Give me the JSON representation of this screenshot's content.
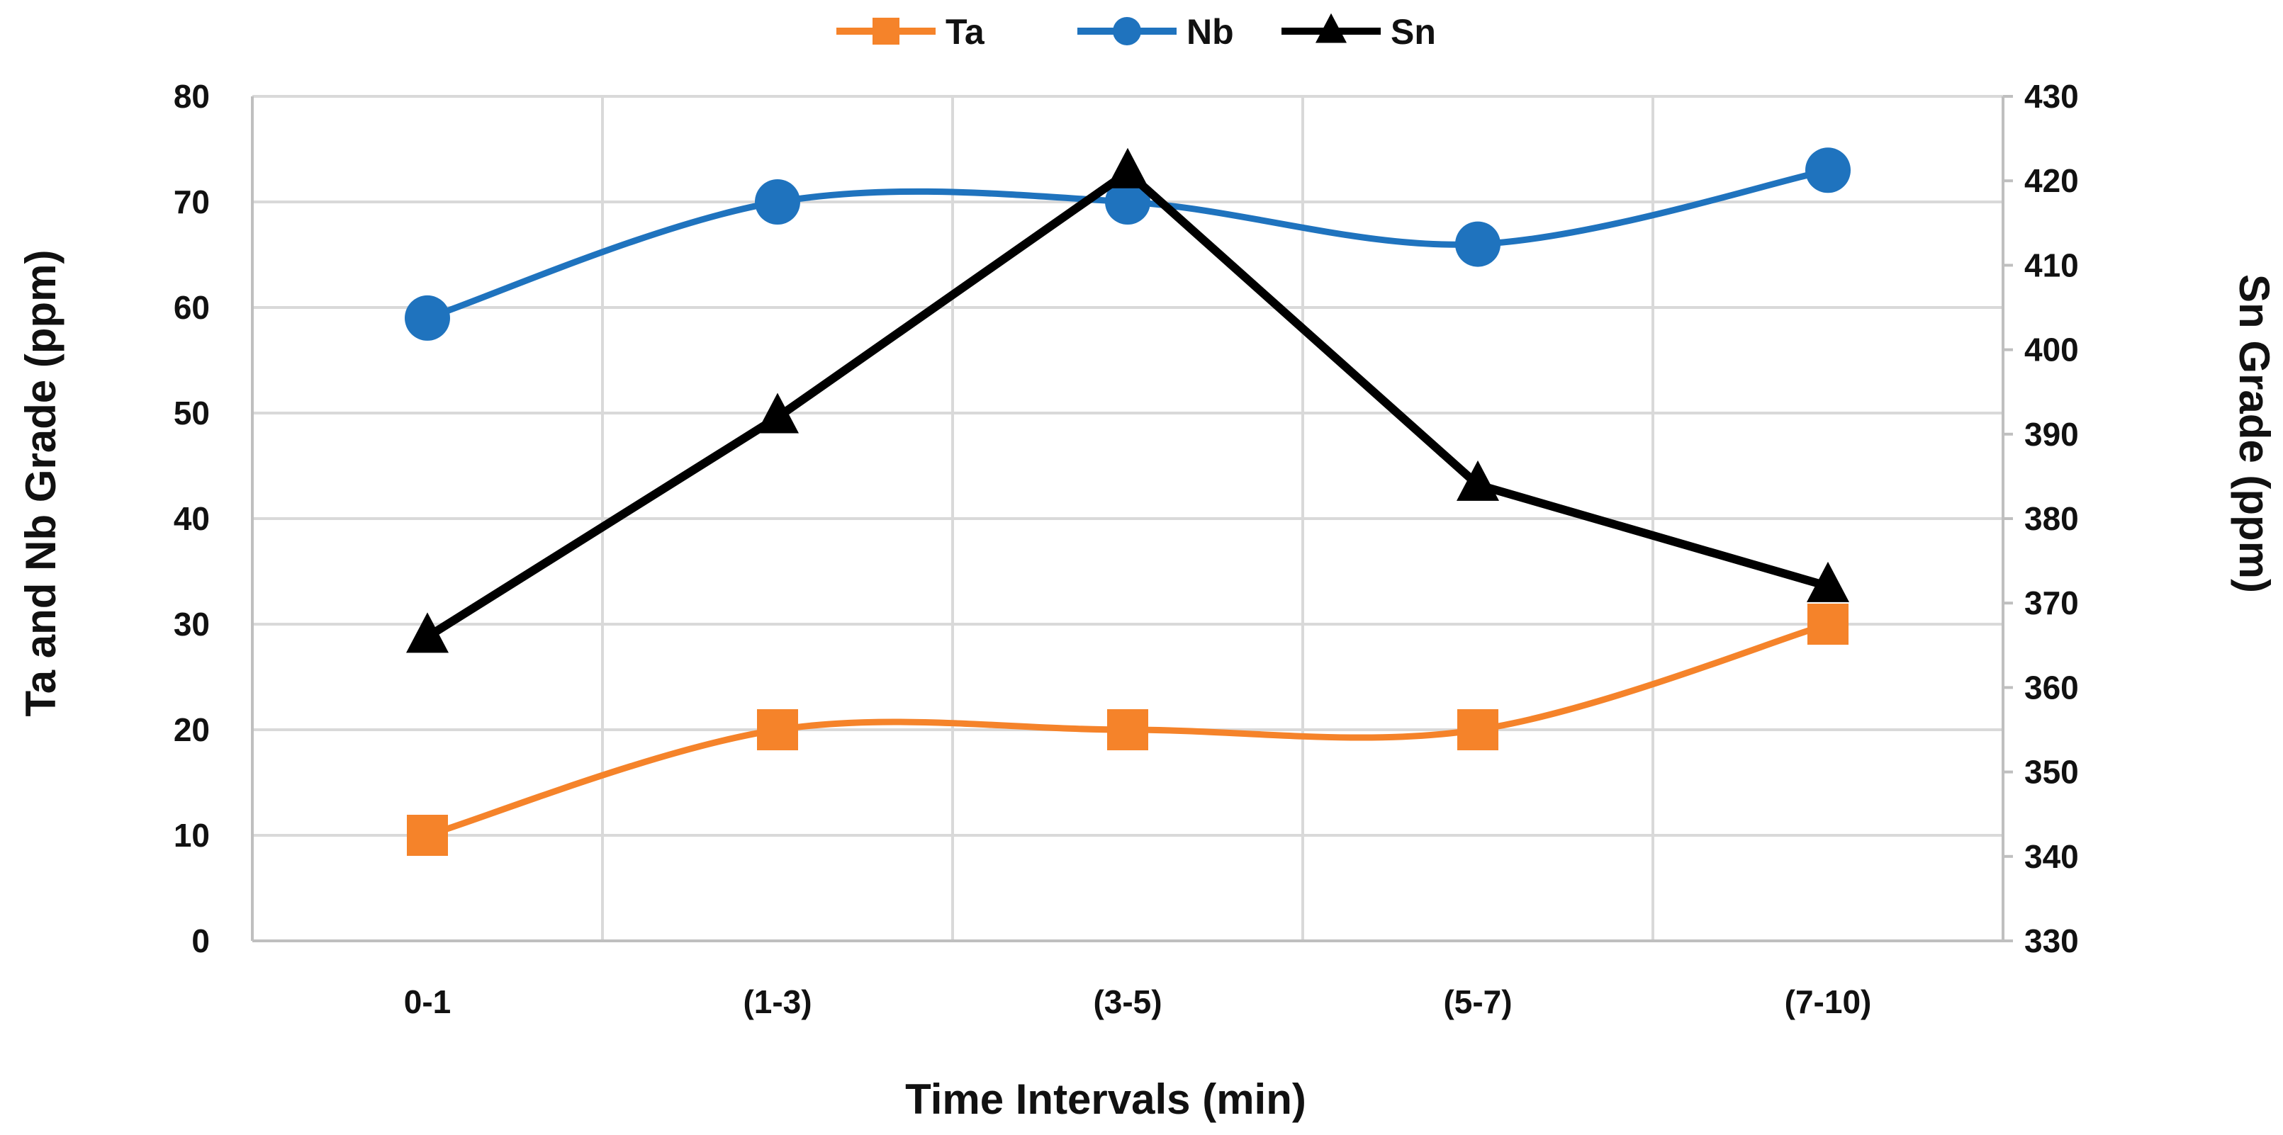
{
  "chart_data": {
    "type": "line",
    "title": "",
    "xlabel": "Time Intervals (min)",
    "ylabel": "Ta and Nb Grade (ppm)",
    "y2label": "Sn Grade (ppm)",
    "categories": [
      "0-1",
      "(1-3)",
      "(3-5)",
      "(5-7)",
      "(7-10)"
    ],
    "ylim": [
      0,
      80
    ],
    "yticks": [
      0,
      10,
      20,
      30,
      40,
      50,
      60,
      70,
      80
    ],
    "y2lim": [
      330,
      430
    ],
    "y2ticks": [
      330,
      340,
      350,
      360,
      370,
      380,
      390,
      400,
      410,
      420,
      430
    ],
    "grid": true,
    "legend_position": "top-center",
    "series": [
      {
        "name": "Ta",
        "axis": "left",
        "values": [
          10,
          20,
          20,
          20,
          30
        ],
        "marker": "square",
        "smooth": true,
        "color": "#F5832A"
      },
      {
        "name": "Nb",
        "axis": "left",
        "values": [
          59,
          70,
          70,
          66,
          73
        ],
        "marker": "circle",
        "smooth": true,
        "color": "#1F73BE"
      },
      {
        "name": "Sn",
        "axis": "right",
        "values": [
          366,
          392,
          421,
          384,
          372
        ],
        "marker": "triangle",
        "smooth": false,
        "color": "#000000"
      }
    ]
  }
}
